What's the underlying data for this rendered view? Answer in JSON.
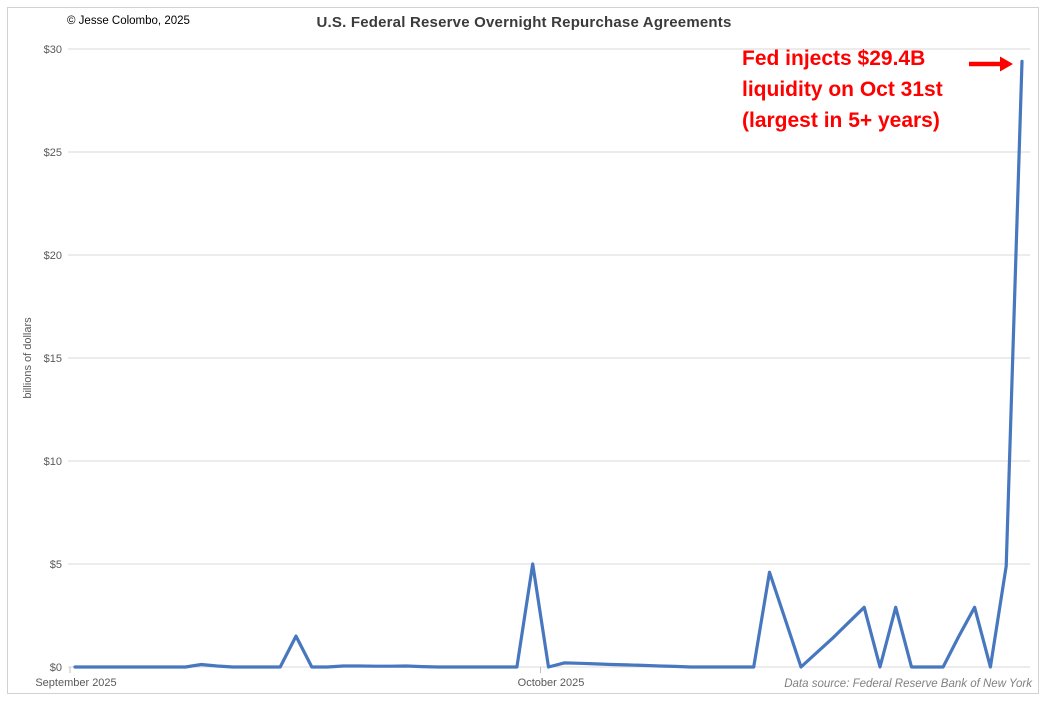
{
  "header": {
    "copyright": "© Jesse Colombo, 2025",
    "title": "U.S. Federal Reserve Overnight Repurchase Agreements"
  },
  "annotation": {
    "lines": [
      "Fed injects $29.4B",
      "liquidity on Oct 31st",
      "(largest in 5+ years)"
    ],
    "color": "#ff0000",
    "arrow_icon": "right-arrow"
  },
  "footer": {
    "data_source": "Data source: Federal Reserve Bank of New York"
  },
  "colors": {
    "line": "#4777be",
    "gridline": "#d9d9d9",
    "tick": "#bfbfbf",
    "axis_text": "#595959",
    "annotation_red": "#ff0000",
    "title_text": "#3b3b3b"
  },
  "chart_data": {
    "type": "line",
    "title": "U.S. Federal Reserve Overnight Repurchase Agreements",
    "xlabel": "",
    "ylabel": "billions of dollars",
    "x_axis_labels": [
      "September 2025",
      "October 2025"
    ],
    "ylim": [
      0,
      30
    ],
    "y_tick_values": [
      0,
      5,
      10,
      15,
      20,
      25,
      30
    ],
    "y_tick_labels": [
      "$0",
      "$5",
      "$10",
      "$15",
      "$20",
      "$25",
      "$30"
    ],
    "grid": true,
    "legend": false,
    "peak_annotation_value": 29.4,
    "peak_annotation_date": "Oct 31",
    "dates": [
      "Sep 1",
      "Sep 2",
      "Sep 3",
      "Sep 4",
      "Sep 5",
      "Sep 6",
      "Sep 7",
      "Sep 8",
      "Sep 9",
      "Sep 10",
      "Sep 11",
      "Sep 12",
      "Sep 13",
      "Sep 14",
      "Sep 15",
      "Sep 16",
      "Sep 17",
      "Sep 18",
      "Sep 19",
      "Sep 20",
      "Sep 21",
      "Sep 22",
      "Sep 23",
      "Sep 24",
      "Sep 25",
      "Sep 26",
      "Sep 27",
      "Sep 28",
      "Sep 29",
      "Sep 30",
      "Oct 1",
      "Oct 2",
      "Oct 3",
      "Oct 4",
      "Oct 5",
      "Oct 6",
      "Oct 7",
      "Oct 8",
      "Oct 9",
      "Oct 10",
      "Oct 11",
      "Oct 12",
      "Oct 13",
      "Oct 14",
      "Oct 15",
      "Oct 16",
      "Oct 17",
      "Oct 18",
      "Oct 19",
      "Oct 20",
      "Oct 21",
      "Oct 22",
      "Oct 23",
      "Oct 24",
      "Oct 25",
      "Oct 26",
      "Oct 27",
      "Oct 28",
      "Oct 29",
      "Oct 30",
      "Oct 31"
    ],
    "values": [
      0,
      0,
      0,
      0,
      0,
      0,
      0,
      0,
      0.12,
      0.05,
      0,
      0,
      0,
      0,
      1.5,
      0,
      0,
      0.05,
      0.05,
      0.04,
      0.04,
      0.05,
      0.02,
      0,
      0,
      0,
      0,
      0,
      0,
      5.0,
      0,
      0.2,
      0.18,
      0.15,
      0.12,
      0.1,
      0.08,
      0.05,
      0.03,
      0,
      0,
      0,
      0,
      0,
      4.6,
      2.3,
      0,
      0.7,
      1.4,
      2.15,
      2.9,
      0,
      2.9,
      0,
      0,
      0,
      1.5,
      2.9,
      0,
      4.9,
      29.4
    ]
  }
}
